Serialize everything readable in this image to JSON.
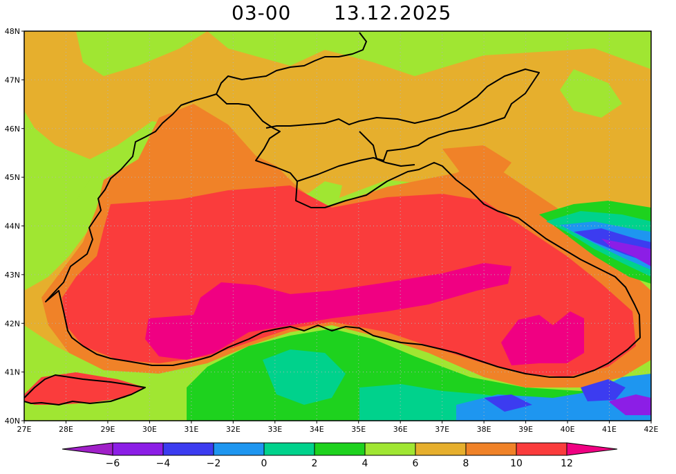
{
  "title": {
    "time": "03-00",
    "date": "13.12.2025"
  },
  "axes": {
    "lon_labels": [
      "27E",
      "28E",
      "29E",
      "30E",
      "31E",
      "32E",
      "33E",
      "34E",
      "35E",
      "36E",
      "37E",
      "38E",
      "39E",
      "40E",
      "41E",
      "42E"
    ],
    "lat_labels": [
      "48N",
      "47N",
      "46N",
      "45N",
      "44N",
      "43N",
      "42N",
      "41N",
      "40N"
    ]
  },
  "colorbar": {
    "labels": [
      "-6",
      "-4",
      "-2",
      "0",
      "2",
      "4",
      "6",
      "8",
      "10",
      "12"
    ],
    "bins": [
      {
        "color": "#a020c8"
      },
      {
        "color": "#8c1ee6"
      },
      {
        "color": "#3c3cf0"
      },
      {
        "color": "#1e96f0"
      },
      {
        "color": "#00d28c"
      },
      {
        "color": "#1ed21e"
      },
      {
        "color": "#a0e632"
      },
      {
        "color": "#e6af2d"
      },
      {
        "color": "#f08228"
      },
      {
        "color": "#fa3c3c"
      },
      {
        "color": "#f00082"
      }
    ]
  },
  "palette": {
    "green_light": "#a0e632",
    "green": "#1ed21e",
    "teal": "#00d28c",
    "sky": "#1e96f0",
    "blue": "#3c3cf0",
    "violet": "#8c1ee6",
    "amber": "#e6af2d",
    "orange": "#f08228",
    "red": "#fa3c3c",
    "magenta": "#f00082"
  }
}
